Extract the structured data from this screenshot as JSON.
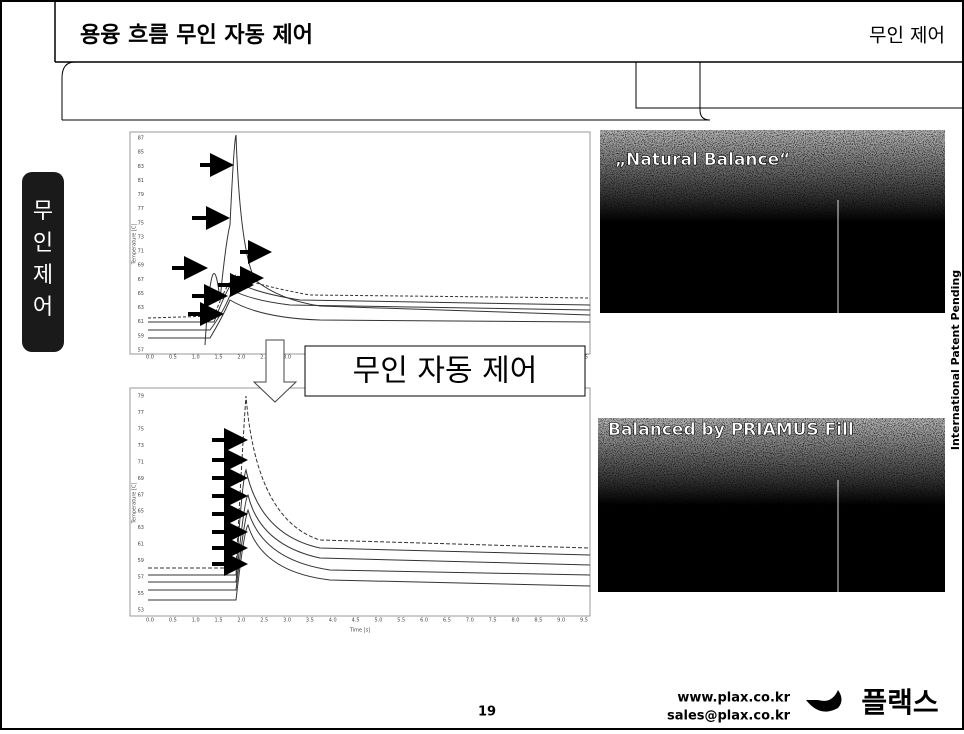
{
  "header": {
    "title": "용융 흐름 무인 자동 제어",
    "section": "무인 제어"
  },
  "side_tab": {
    "label": [
      "무",
      "인",
      "제",
      "어"
    ]
  },
  "banner": "무인 자동 제어",
  "charts": [
    {
      "y_label": "Temperature [C]",
      "yticks": [
        "87",
        "85",
        "83",
        "81",
        "79",
        "77",
        "75",
        "73",
        "71",
        "69",
        "67",
        "65",
        "63",
        "61",
        "59",
        "57"
      ],
      "xticks": [
        "0.0",
        "0.5",
        "1.0",
        "1.5",
        "2.0",
        "2.5",
        "3.0",
        "3.5",
        "4.0",
        "4.5",
        "5.0",
        "5.5",
        "6.0",
        "6.5",
        "7.0",
        "7.5",
        "8.0",
        "8.5",
        "9.0",
        "9.5"
      ]
    },
    {
      "y_label": "Temperature [C]",
      "x_label": "Time [s]",
      "yticks": [
        "79",
        "77",
        "75",
        "73",
        "71",
        "69",
        "67",
        "65",
        "63",
        "61",
        "59",
        "57",
        "55",
        "53"
      ],
      "xticks": [
        "0.0",
        "0.5",
        "1.0",
        "1.5",
        "2.0",
        "2.5",
        "3.0",
        "3.5",
        "4.0",
        "4.5",
        "5.0",
        "5.5",
        "6.0",
        "6.5",
        "7.0",
        "7.5",
        "8.0",
        "8.5",
        "9.0",
        "9.5"
      ]
    }
  ],
  "images": [
    {
      "caption": "„Natural Balance“"
    },
    {
      "caption": "Balanced by PRIAMUS Fill"
    }
  ],
  "side_note": "International Patent Pending",
  "footer": {
    "page": "19",
    "web": "www.plax.co.kr",
    "email": "sales@plax.co.kr",
    "logo": "플랙스"
  }
}
